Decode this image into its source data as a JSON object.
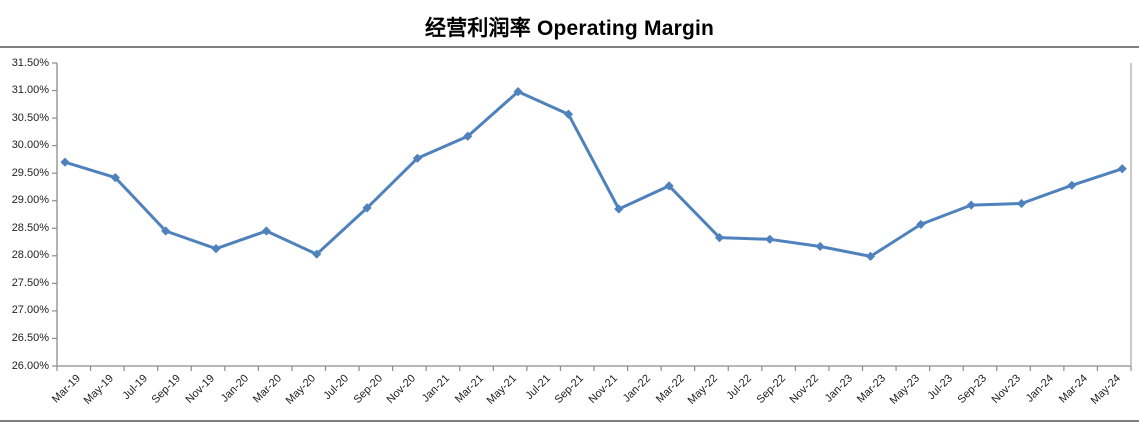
{
  "title": "经营利润率 Operating Margin",
  "chart_data": {
    "type": "line",
    "title": "经营利润率 Operating Margin",
    "xlabel": "",
    "ylabel": "",
    "ylim": [
      26.0,
      31.5
    ],
    "y_tick_step": 0.5,
    "grid": false,
    "legend_position": "none",
    "y_tick_labels": [
      "31.50%",
      "31.00%",
      "30.50%",
      "30.00%",
      "29.50%",
      "29.00%",
      "28.50%",
      "28.00%",
      "27.50%",
      "27.00%",
      "26.50%",
      "26.00%"
    ],
    "x_tick_labels": [
      "Mar-19",
      "May-19",
      "Jul-19",
      "Sep-19",
      "Nov-19",
      "Jan-20",
      "Mar-20",
      "May-20",
      "Jul-20",
      "Sep-20",
      "Nov-20",
      "Jan-21",
      "Mar-21",
      "May-21",
      "Jul-21",
      "Sep-21",
      "Nov-21",
      "Jan-22",
      "Mar-22",
      "May-22",
      "Jul-22",
      "Sep-22",
      "Nov-22",
      "Jan-23",
      "Mar-23",
      "May-23",
      "Jul-23",
      "Sep-23",
      "Nov-23",
      "Jan-24",
      "Mar-24",
      "May-24"
    ],
    "x_axis_months_total": 64,
    "series": [
      {
        "name": "Operating Margin",
        "color": "#4F81BD",
        "marker": "diamond",
        "points": [
          {
            "quarter": "Mar-19",
            "month_index": 0,
            "value": 29.7
          },
          {
            "quarter": "Jun-19",
            "month_index": 3,
            "value": 29.42
          },
          {
            "quarter": "Sep-19",
            "month_index": 6,
            "value": 28.45
          },
          {
            "quarter": "Dec-19",
            "month_index": 9,
            "value": 28.13
          },
          {
            "quarter": "Mar-20",
            "month_index": 12,
            "value": 28.45
          },
          {
            "quarter": "Jun-20",
            "month_index": 15,
            "value": 28.03
          },
          {
            "quarter": "Sep-20",
            "month_index": 18,
            "value": 28.87
          },
          {
            "quarter": "Dec-20",
            "month_index": 21,
            "value": 29.77
          },
          {
            "quarter": "Mar-21",
            "month_index": 24,
            "value": 30.17
          },
          {
            "quarter": "Jun-21",
            "month_index": 27,
            "value": 30.98
          },
          {
            "quarter": "Sep-21",
            "month_index": 30,
            "value": 30.57
          },
          {
            "quarter": "Dec-21",
            "month_index": 33,
            "value": 28.85
          },
          {
            "quarter": "Mar-22",
            "month_index": 36,
            "value": 29.27
          },
          {
            "quarter": "Jun-22",
            "month_index": 39,
            "value": 28.33
          },
          {
            "quarter": "Sep-22",
            "month_index": 42,
            "value": 28.3
          },
          {
            "quarter": "Dec-22",
            "month_index": 45,
            "value": 28.17
          },
          {
            "quarter": "Mar-23",
            "month_index": 48,
            "value": 27.99
          },
          {
            "quarter": "Jun-23",
            "month_index": 51,
            "value": 28.57
          },
          {
            "quarter": "Sep-23",
            "month_index": 54,
            "value": 28.92
          },
          {
            "quarter": "Dec-23",
            "month_index": 57,
            "value": 28.95
          },
          {
            "quarter": "Mar-24",
            "month_index": 60,
            "value": 29.28
          },
          {
            "quarter": "Jun-24",
            "month_index": 63,
            "value": 29.58
          }
        ]
      }
    ]
  },
  "colors": {
    "series_line": "#4F81BD",
    "axis_line": "#8c8c8c",
    "plot_right_border": "#a6a6a6",
    "rule_lines": "#7f7f7f",
    "title_text": "#000000",
    "tick_text": "#1f1f1f",
    "background": "#ffffff"
  }
}
